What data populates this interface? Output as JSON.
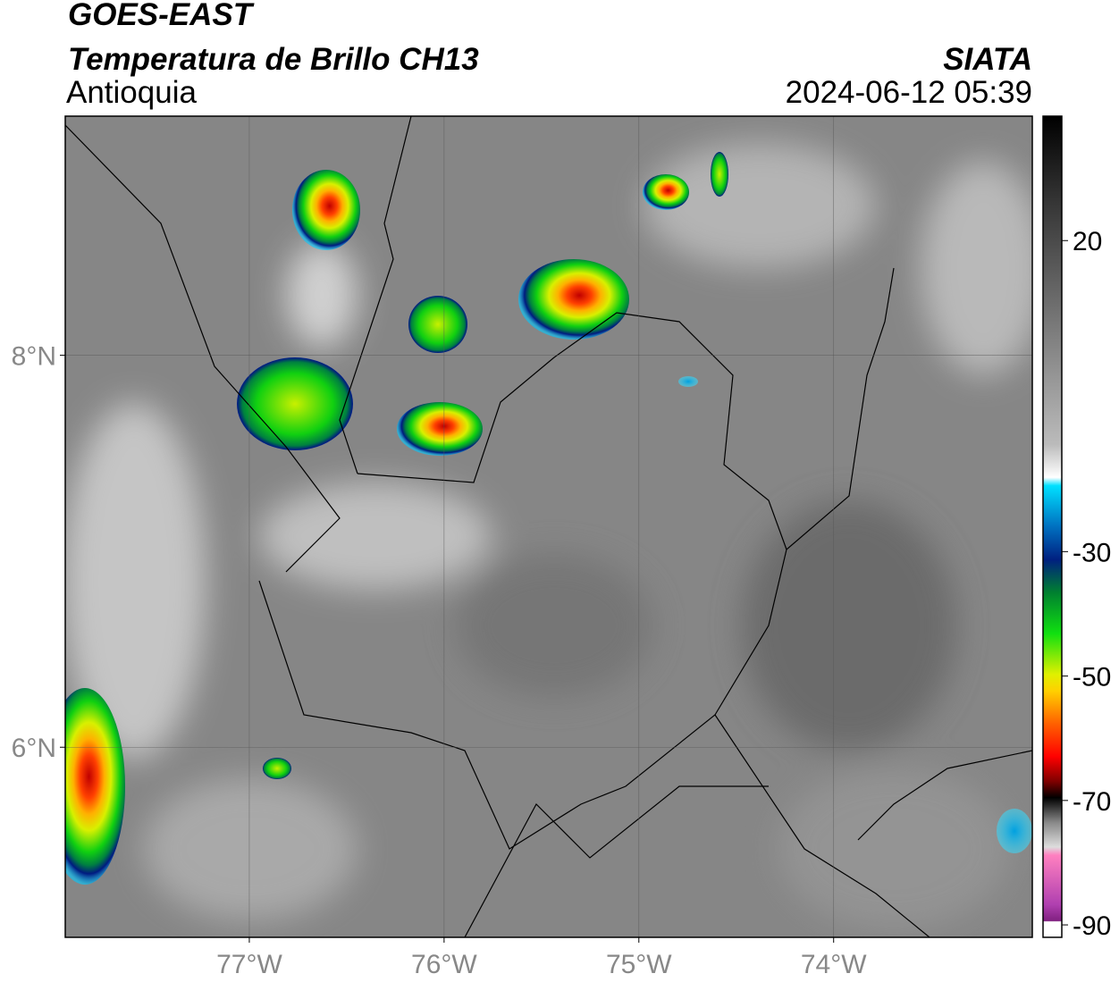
{
  "header": {
    "title": "GOES-EAST",
    "subtitle": "Temperatura de Brillo CH13",
    "region": "Antioquia",
    "source": "SIATA",
    "timestamp": "2024-06-12 05:39"
  },
  "map": {
    "xlim": [
      -77.945,
      -72.98
    ],
    "ylim": [
      5.03,
      9.22
    ],
    "xticks": [
      {
        "value": -77,
        "label": "77°W"
      },
      {
        "value": -76,
        "label": "76°W"
      },
      {
        "value": -75,
        "label": "75°W"
      },
      {
        "value": -74,
        "label": "74°W"
      }
    ],
    "yticks": [
      {
        "value": 8,
        "label": "8°N"
      },
      {
        "value": 6,
        "label": "6°N"
      }
    ],
    "grid": true
  },
  "colorbar": {
    "lim": [
      -92,
      40
    ],
    "ticks": [
      20,
      -30,
      -50,
      -70,
      -90
    ]
  }
}
